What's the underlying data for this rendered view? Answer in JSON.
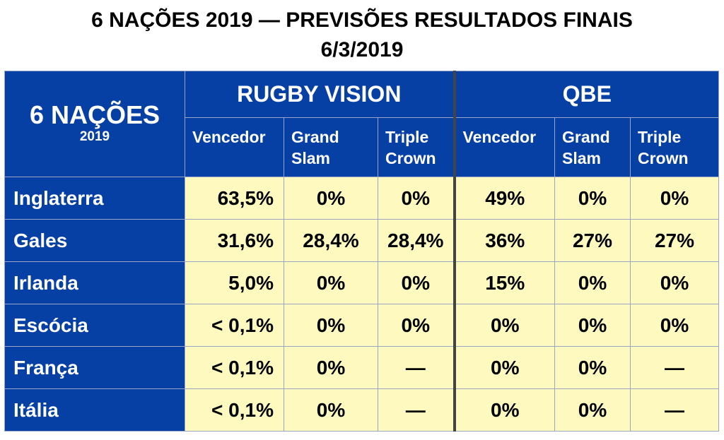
{
  "title": {
    "line1": "6 NAÇÕES 2019 — PREVISÕES RESULTADOS FINAIS",
    "line2": "6/3/2019"
  },
  "colors": {
    "header_blue": "#0740a4",
    "cell_yellow": "#fefabf",
    "separator": "#444444"
  },
  "table": {
    "corner": {
      "big": "6 NAÇÕES",
      "small": "2019"
    },
    "groups": [
      {
        "name": "RUGBY VISION",
        "columns": [
          "Vencedor",
          "Grand Slam",
          "Triple Crown"
        ]
      },
      {
        "name": "QBE",
        "columns": [
          "Vencedor",
          "Grand Slam",
          "Triple Crown"
        ]
      }
    ],
    "rows": [
      {
        "team": "Inglaterra",
        "values": [
          "63,5%",
          "0%",
          "0%",
          "49%",
          "0%",
          "0%"
        ]
      },
      {
        "team": "Gales",
        "values": [
          "31,6%",
          "28,4%",
          "28,4%",
          "36%",
          "27%",
          "27%"
        ]
      },
      {
        "team": "Irlanda",
        "values": [
          "5,0%",
          "0%",
          "0%",
          "15%",
          "0%",
          "0%"
        ]
      },
      {
        "team": "Escócia",
        "values": [
          "< 0,1%",
          "0%",
          "0%",
          "0%",
          "0%",
          "0%"
        ]
      },
      {
        "team": "França",
        "values": [
          "< 0,1%",
          "0%",
          "—",
          "0%",
          "0%",
          "—"
        ]
      },
      {
        "team": "Itália",
        "values": [
          "< 0,1%",
          "0%",
          "—",
          "0%",
          "0%",
          "—"
        ]
      }
    ]
  }
}
